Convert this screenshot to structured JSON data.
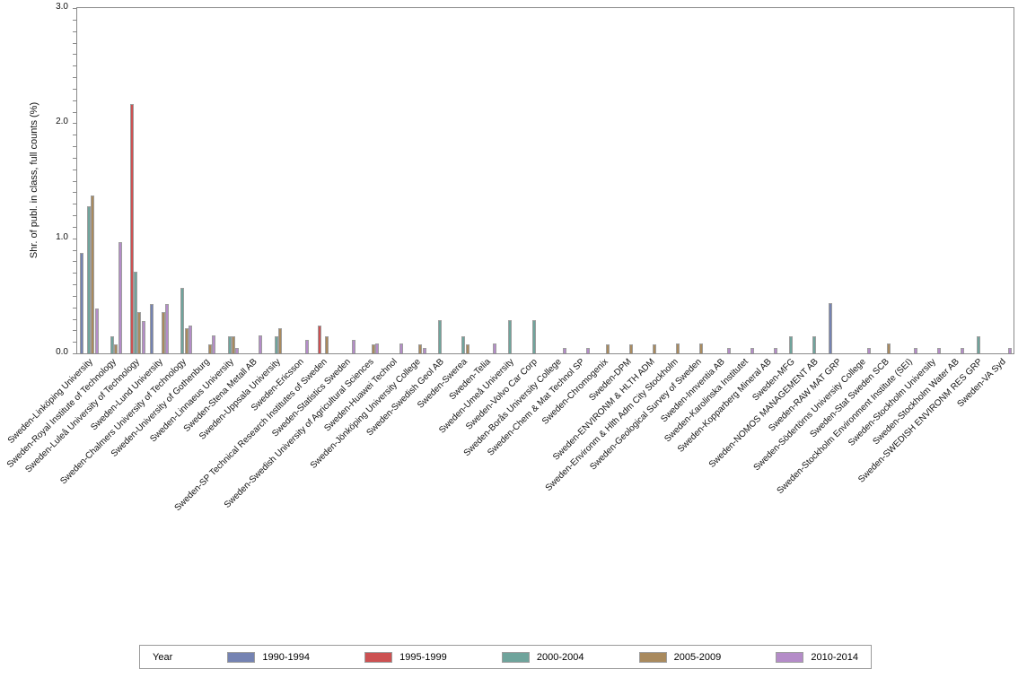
{
  "chart_data": {
    "type": "bar",
    "title": "",
    "xlabel": "",
    "ylabel": "Shr. of publ. in class, full counts (%)",
    "ylim": [
      0,
      3.0
    ],
    "yticks_major": [
      0.0,
      1.0,
      2.0,
      3.0
    ],
    "ytick_minor_step": 0.1,
    "grid": false,
    "legend_position": "bottom",
    "legend_title": "Year",
    "categories": [
      "Sweden-Linköping University",
      "Sweden-Royal Institute of Technology",
      "Sweden-Luleå University of Technology",
      "Sweden-Lund University",
      "Sweden-Chalmers University of Technology",
      "Sweden-University of Gothenburg",
      "Sweden-Linnaeus University",
      "Sweden-Stena Metall AB",
      "Sweden-Uppsala University",
      "Sweden-Ericsson",
      "Sweden-SP Technical Research Institutes of Sweden",
      "Sweden-Statistics Sweden",
      "Sweden-Swedish University of Agricultural Sciences",
      "Sweden-Huawei Technol",
      "Sweden-Jönköping University College",
      "Sweden-Swedish Geol AB",
      "Sweden-Swerea",
      "Sweden-Telia",
      "Sweden-Umeå University",
      "Sweden-Volvo Car Corp",
      "Sweden-Borås University College",
      "Sweden-Chem & Mat Technol SP",
      "Sweden-Chromogenix",
      "Sweden-DPM",
      "Sweden-ENVIRONM & HLTH ADM",
      "Sweden-Environm & Hlth Adm City Stockholm",
      "Sweden-Geological Survey of Sweden",
      "Sweden-Innventia AB",
      "Sweden-Karolinska Institutet",
      "Sweden-Kopparberg Mineral AB",
      "Sweden-MFG",
      "Sweden-NOMOS MANAGEMENT AB",
      "Sweden-RAW MAT GRP",
      "Sweden-Södertörns University College",
      "Sweden-Stat Sweden SCB",
      "Sweden-Stockholm Environment Institute (SEI)",
      "Sweden-Stockholm University",
      "Sweden-Stockholm Water AB",
      "Sweden-SWEDISH ENVIRONM RES GRP",
      "Sweden-VA Syd"
    ],
    "series": [
      {
        "name": "1990-1994",
        "color": "#7583b2",
        "values": [
          0.87,
          0,
          0,
          0.43,
          0,
          0,
          0,
          0,
          0,
          0,
          0,
          0,
          0,
          0,
          0,
          0,
          0,
          0,
          0,
          0,
          0,
          0,
          0,
          0,
          0,
          0,
          0,
          0,
          0,
          0,
          0,
          0,
          0.44,
          0,
          0,
          0,
          0,
          0,
          0,
          0
        ]
      },
      {
        "name": "1995-1999",
        "color": "#cc5152",
        "values": [
          0,
          0,
          2.17,
          0,
          0,
          0,
          0,
          0,
          0,
          0,
          0.24,
          0,
          0,
          0,
          0,
          0,
          0,
          0,
          0,
          0,
          0,
          0,
          0,
          0,
          0,
          0,
          0,
          0,
          0,
          0,
          0,
          0,
          0,
          0,
          0,
          0,
          0,
          0,
          0,
          0
        ]
      },
      {
        "name": "2000-2004",
        "color": "#6fa49c",
        "values": [
          1.28,
          0.15,
          0.71,
          0,
          0.57,
          0,
          0.15,
          0,
          0.15,
          0,
          0,
          0,
          0,
          0,
          0,
          0.29,
          0.15,
          0,
          0.29,
          0.29,
          0,
          0,
          0,
          0,
          0,
          0,
          0,
          0,
          0,
          0,
          0.15,
          0.15,
          0,
          0,
          0,
          0,
          0,
          0,
          0.15,
          0
        ]
      },
      {
        "name": "2005-2009",
        "color": "#a98a5e",
        "values": [
          1.37,
          0.08,
          0.36,
          0.36,
          0.22,
          0.08,
          0.15,
          0,
          0.22,
          0,
          0.15,
          0,
          0.08,
          0,
          0.08,
          0,
          0.08,
          0,
          0,
          0,
          0,
          0,
          0.08,
          0.08,
          0.08,
          0.09,
          0.09,
          0,
          0,
          0,
          0,
          0,
          0,
          0,
          0.09,
          0,
          0,
          0,
          0,
          0
        ]
      },
      {
        "name": "2010-2014",
        "color": "#b48cc8",
        "values": [
          0.39,
          0.97,
          0.28,
          0.43,
          0.24,
          0.16,
          0.05,
          0.16,
          0,
          0.12,
          0,
          0.12,
          0.09,
          0.09,
          0.05,
          0,
          0,
          0.09,
          0,
          0,
          0.05,
          0.05,
          0,
          0,
          0,
          0,
          0,
          0.05,
          0.05,
          0.05,
          0,
          0,
          0,
          0.05,
          0,
          0.05,
          0.05,
          0.05,
          0,
          0.05
        ]
      }
    ]
  }
}
